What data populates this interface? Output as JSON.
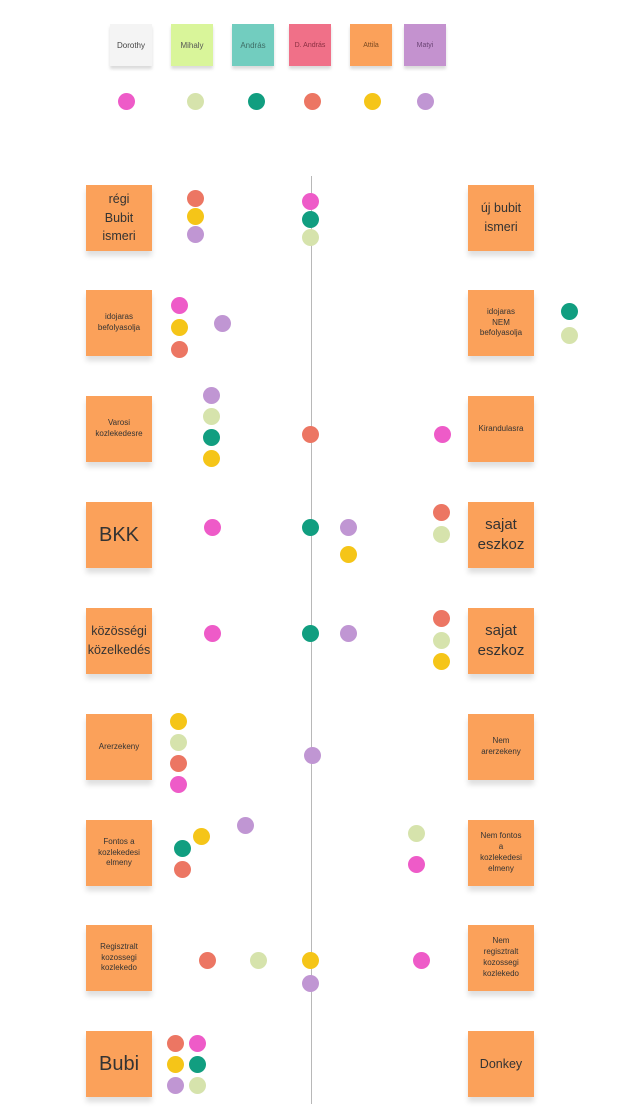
{
  "legend": [
    {
      "name": "Dorothy",
      "color": "#ee5bc8"
    },
    {
      "name": "Mihaly",
      "color": "#d6e3ac"
    },
    {
      "name": "András",
      "color": "#119e80"
    },
    {
      "name": "D. András",
      "color": "#ec7663"
    },
    {
      "name": "Attila",
      "color": "#f5c518"
    },
    {
      "name": "Matyi",
      "color": "#c096d3"
    }
  ],
  "rows": [
    {
      "left": "régi\nBubit\nismeri",
      "right": "új bubit\nismeri"
    },
    {
      "left": "idojaras\nbefolyasolja",
      "right": "idojaras\nNEM\nbefolyasolja"
    },
    {
      "left": "Varosi\nkozlekedesre",
      "right": "Kirandulasra"
    },
    {
      "left": "BKK",
      "right": "sajat\neszkoz"
    },
    {
      "left": "közösségi\nközelkedés",
      "right": "sajat\neszkoz"
    },
    {
      "left": "Arerzekeny",
      "right": "Nem\narerzekeny"
    },
    {
      "left": "Fontos a\nkozlekedesi\nelmeny",
      "right": "Nem fontos\na\nkozlekedesi\nelmeny"
    },
    {
      "left": "Regisztralt\nkozossegi\nkozlekedo",
      "right": "Nem\nregisztralt\nkozossegi\nkozlekedo"
    },
    {
      "left": "Bubi",
      "right": "Donkey"
    }
  ]
}
